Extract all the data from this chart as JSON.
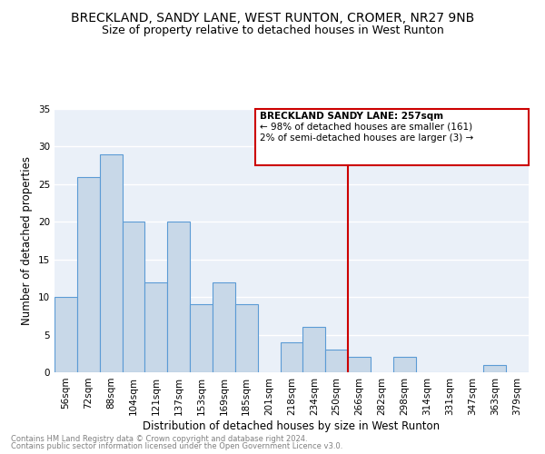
{
  "title": "BRECKLAND, SANDY LANE, WEST RUNTON, CROMER, NR27 9NB",
  "subtitle": "Size of property relative to detached houses in West Runton",
  "xlabel": "Distribution of detached houses by size in West Runton",
  "ylabel": "Number of detached properties",
  "footnote1": "Contains HM Land Registry data © Crown copyright and database right 2024.",
  "footnote2": "Contains public sector information licensed under the Open Government Licence v3.0.",
  "bar_labels": [
    "56sqm",
    "72sqm",
    "88sqm",
    "104sqm",
    "121sqm",
    "137sqm",
    "153sqm",
    "169sqm",
    "185sqm",
    "201sqm",
    "218sqm",
    "234sqm",
    "250sqm",
    "266sqm",
    "282sqm",
    "298sqm",
    "314sqm",
    "331sqm",
    "347sqm",
    "363sqm",
    "379sqm"
  ],
  "bar_values": [
    10,
    26,
    29,
    20,
    12,
    20,
    9,
    12,
    9,
    0,
    4,
    6,
    3,
    2,
    0,
    2,
    0,
    0,
    0,
    1,
    0
  ],
  "bar_color": "#c8d8e8",
  "bar_edgecolor": "#5b9bd5",
  "vline_color": "#cc0000",
  "annotation_title": "BRECKLAND SANDY LANE: 257sqm",
  "annotation_line1": "← 98% of detached houses are smaller (161)",
  "annotation_line2": "2% of semi-detached houses are larger (3) →",
  "annotation_box_color": "#cc0000",
  "ylim": [
    0,
    35
  ],
  "yticks": [
    0,
    5,
    10,
    15,
    20,
    25,
    30,
    35
  ],
  "background_color": "#eaf0f8",
  "grid_color": "#ffffff",
  "title_fontsize": 10,
  "subtitle_fontsize": 9,
  "axis_fontsize": 8.5,
  "tick_fontsize": 7.5,
  "annot_fontsize": 7.5,
  "footnote_fontsize": 6
}
